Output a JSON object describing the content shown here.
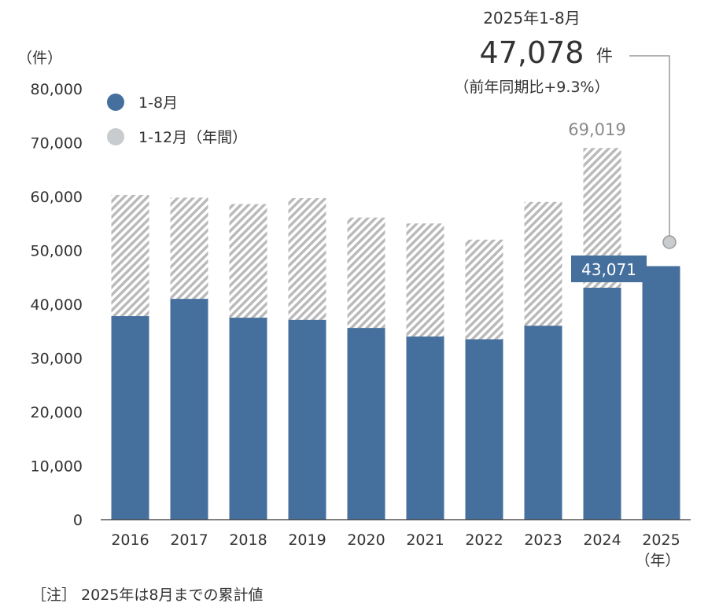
{
  "chart_data": {
    "type": "bar",
    "y_unit_label": "（件）",
    "x_unit_label": "（年）",
    "ylim": [
      0,
      80000
    ],
    "yticks": [
      0,
      10000,
      20000,
      30000,
      40000,
      50000,
      60000,
      70000,
      80000
    ],
    "ytick_labels": [
      "0",
      "10,000",
      "20,000",
      "30,000",
      "40,000",
      "50,000",
      "60,000",
      "70,000",
      "80,000"
    ],
    "categories": [
      "2016",
      "2017",
      "2018",
      "2019",
      "2020",
      "2021",
      "2022",
      "2023",
      "2024",
      "2025"
    ],
    "series": [
      {
        "name": "1-8月",
        "color": "#456f9c",
        "values": [
          37800,
          41000,
          37500,
          37100,
          35600,
          34000,
          33500,
          36000,
          43071,
          47078
        ]
      },
      {
        "name": "1-12月（年間）",
        "color": "#c8cccf",
        "pattern": "hatched",
        "values": [
          60300,
          59800,
          58600,
          59700,
          56100,
          55000,
          52000,
          59000,
          69019,
          null
        ]
      }
    ],
    "labels": {
      "v2024_annual": "69,019",
      "v2024_jan_aug": "43,071"
    },
    "callout": {
      "title": "2025年1-8月",
      "value": "47,078",
      "unit": "件",
      "sub": "（前年同期比+9.3%）"
    }
  },
  "note": "［注］ 2025年は8月までの累計値"
}
